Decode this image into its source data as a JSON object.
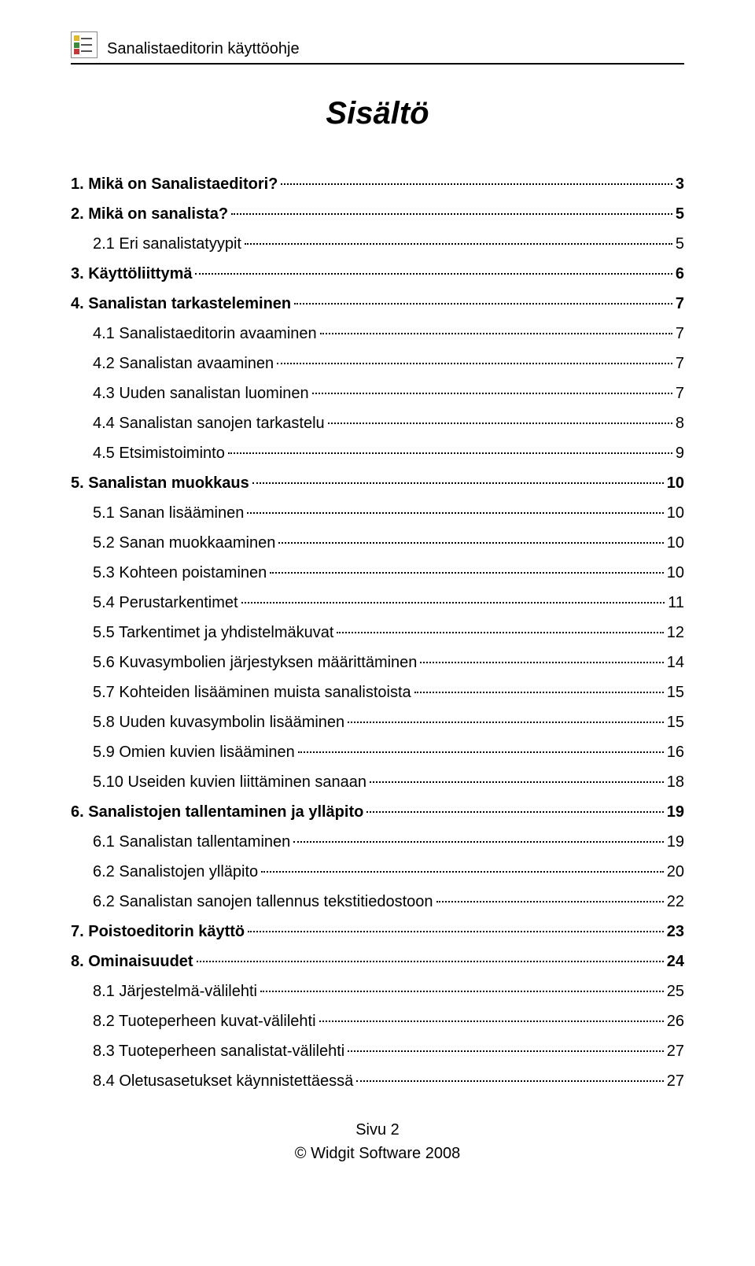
{
  "header": {
    "title": "Sanalistaeditorin käyttöohje"
  },
  "logo": {
    "colors": [
      "#e2b82e",
      "#3c8a3c",
      "#c23a3a"
    ]
  },
  "document": {
    "title": "Sisältö"
  },
  "toc": [
    {
      "label": "1. Mikä on Sanalistaeditori?",
      "page": "3",
      "bold": true,
      "indent": false
    },
    {
      "label": "2. Mikä on sanalista?",
      "page": "5",
      "bold": true,
      "indent": false
    },
    {
      "label": "2.1 Eri sanalistatyypit",
      "page": "5",
      "bold": false,
      "indent": true
    },
    {
      "label": "3. Käyttöliittymä",
      "page": "6",
      "bold": true,
      "indent": false
    },
    {
      "label": "4. Sanalistan tarkasteleminen",
      "page": "7",
      "bold": true,
      "indent": false
    },
    {
      "label": "4.1 Sanalistaeditorin avaaminen",
      "page": "7",
      "bold": false,
      "indent": true
    },
    {
      "label": "4.2 Sanalistan avaaminen",
      "page": "7",
      "bold": false,
      "indent": true
    },
    {
      "label": "4.3 Uuden sanalistan luominen",
      "page": "7",
      "bold": false,
      "indent": true
    },
    {
      "label": "4.4 Sanalistan sanojen tarkastelu",
      "page": "8",
      "bold": false,
      "indent": true
    },
    {
      "label": "4.5 Etsimistoiminto",
      "page": "9",
      "bold": false,
      "indent": true
    },
    {
      "label": "5. Sanalistan muokkaus",
      "page": "10",
      "bold": true,
      "indent": false
    },
    {
      "label": "5.1 Sanan lisääminen",
      "page": "10",
      "bold": false,
      "indent": true
    },
    {
      "label": "5.2 Sanan muokkaaminen",
      "page": "10",
      "bold": false,
      "indent": true
    },
    {
      "label": "5.3 Kohteen poistaminen",
      "page": "10",
      "bold": false,
      "indent": true
    },
    {
      "label": "5.4 Perustarkentimet",
      "page": "11",
      "bold": false,
      "indent": true
    },
    {
      "label": "5.5 Tarkentimet ja yhdistelmäkuvat",
      "page": "12",
      "bold": false,
      "indent": true
    },
    {
      "label": "5.6 Kuvasymbolien järjestyksen määrittäminen",
      "page": "14",
      "bold": false,
      "indent": true
    },
    {
      "label": "5.7 Kohteiden lisääminen muista sanalistoista",
      "page": "15",
      "bold": false,
      "indent": true
    },
    {
      "label": "5.8 Uuden kuvasymbolin lisääminen",
      "page": "15",
      "bold": false,
      "indent": true
    },
    {
      "label": "5.9 Omien kuvien lisääminen",
      "page": "16",
      "bold": false,
      "indent": true
    },
    {
      "label": "5.10 Useiden kuvien liittäminen sanaan",
      "page": "18",
      "bold": false,
      "indent": true
    },
    {
      "label": "6. Sanalistojen tallentaminen ja ylläpito",
      "page": "19",
      "bold": true,
      "indent": false
    },
    {
      "label": "6.1 Sanalistan tallentaminen",
      "page": "19",
      "bold": false,
      "indent": true
    },
    {
      "label": "6.2 Sanalistojen ylläpito",
      "page": "20",
      "bold": false,
      "indent": true
    },
    {
      "label": "6.2 Sanalistan sanojen tallennus tekstitiedostoon",
      "page": "22",
      "bold": false,
      "indent": true
    },
    {
      "label": "7. Poistoeditorin käyttö",
      "page": "23",
      "bold": true,
      "indent": false
    },
    {
      "label": "8. Ominaisuudet",
      "page": "24",
      "bold": true,
      "indent": false
    },
    {
      "label": "8.1 Järjestelmä-välilehti",
      "page": "25",
      "bold": false,
      "indent": true
    },
    {
      "label": "8.2 Tuoteperheen kuvat-välilehti",
      "page": "26",
      "bold": false,
      "indent": true
    },
    {
      "label": "8.3 Tuoteperheen sanalistat-välilehti",
      "page": "27",
      "bold": false,
      "indent": true
    },
    {
      "label": "8.4 Oletusasetukset käynnistettäessä",
      "page": "27",
      "bold": false,
      "indent": true
    }
  ],
  "footer": {
    "page_label": "Sivu 2",
    "copyright": "© Widgit Software 2008"
  }
}
